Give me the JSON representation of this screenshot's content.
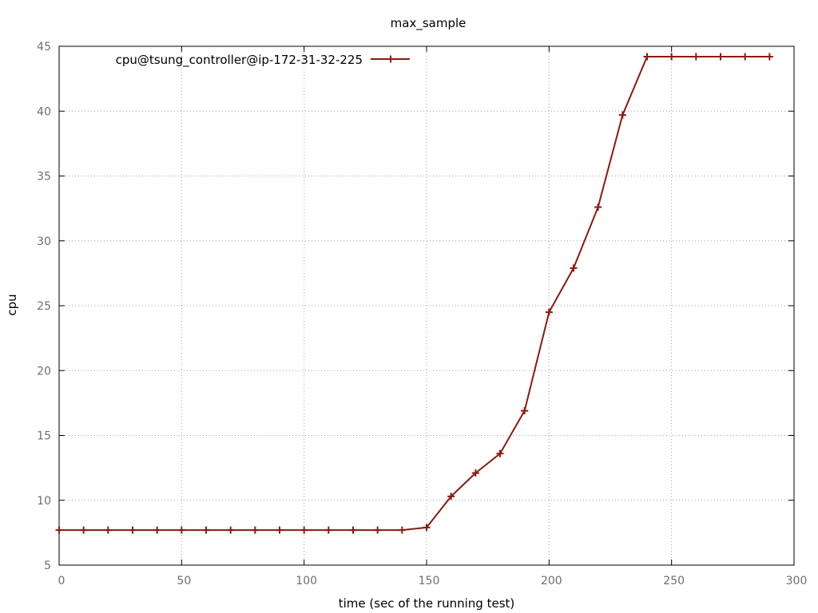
{
  "chart_data": {
    "type": "line",
    "title": "max_sample",
    "xlabel": "time (sec of the running test)",
    "ylabel": "cpu",
    "xlim": [
      0,
      300
    ],
    "ylim": [
      5,
      45
    ],
    "xticks": [
      0,
      50,
      100,
      150,
      200,
      250,
      300
    ],
    "yticks": [
      5,
      10,
      15,
      20,
      25,
      30,
      35,
      40,
      45
    ],
    "grid": true,
    "legend_position": "top-left",
    "series": [
      {
        "name": "cpu@tsung_controller@ip-172-31-32-225",
        "color": "#8b1a10",
        "marker": "plus",
        "x": [
          0,
          10,
          20,
          30,
          40,
          50,
          60,
          70,
          80,
          90,
          100,
          110,
          120,
          130,
          140,
          150,
          160,
          170,
          180,
          190,
          200,
          210,
          220,
          230,
          240,
          250,
          260,
          270,
          280,
          290
        ],
        "y": [
          7.7,
          7.7,
          7.7,
          7.7,
          7.7,
          7.7,
          7.7,
          7.7,
          7.7,
          7.7,
          7.7,
          7.7,
          7.7,
          7.7,
          7.7,
          7.9,
          10.3,
          12.1,
          13.6,
          16.9,
          24.5,
          27.9,
          32.6,
          39.7,
          44.2,
          44.2,
          44.2,
          44.2,
          44.2,
          44.2
        ]
      }
    ]
  }
}
